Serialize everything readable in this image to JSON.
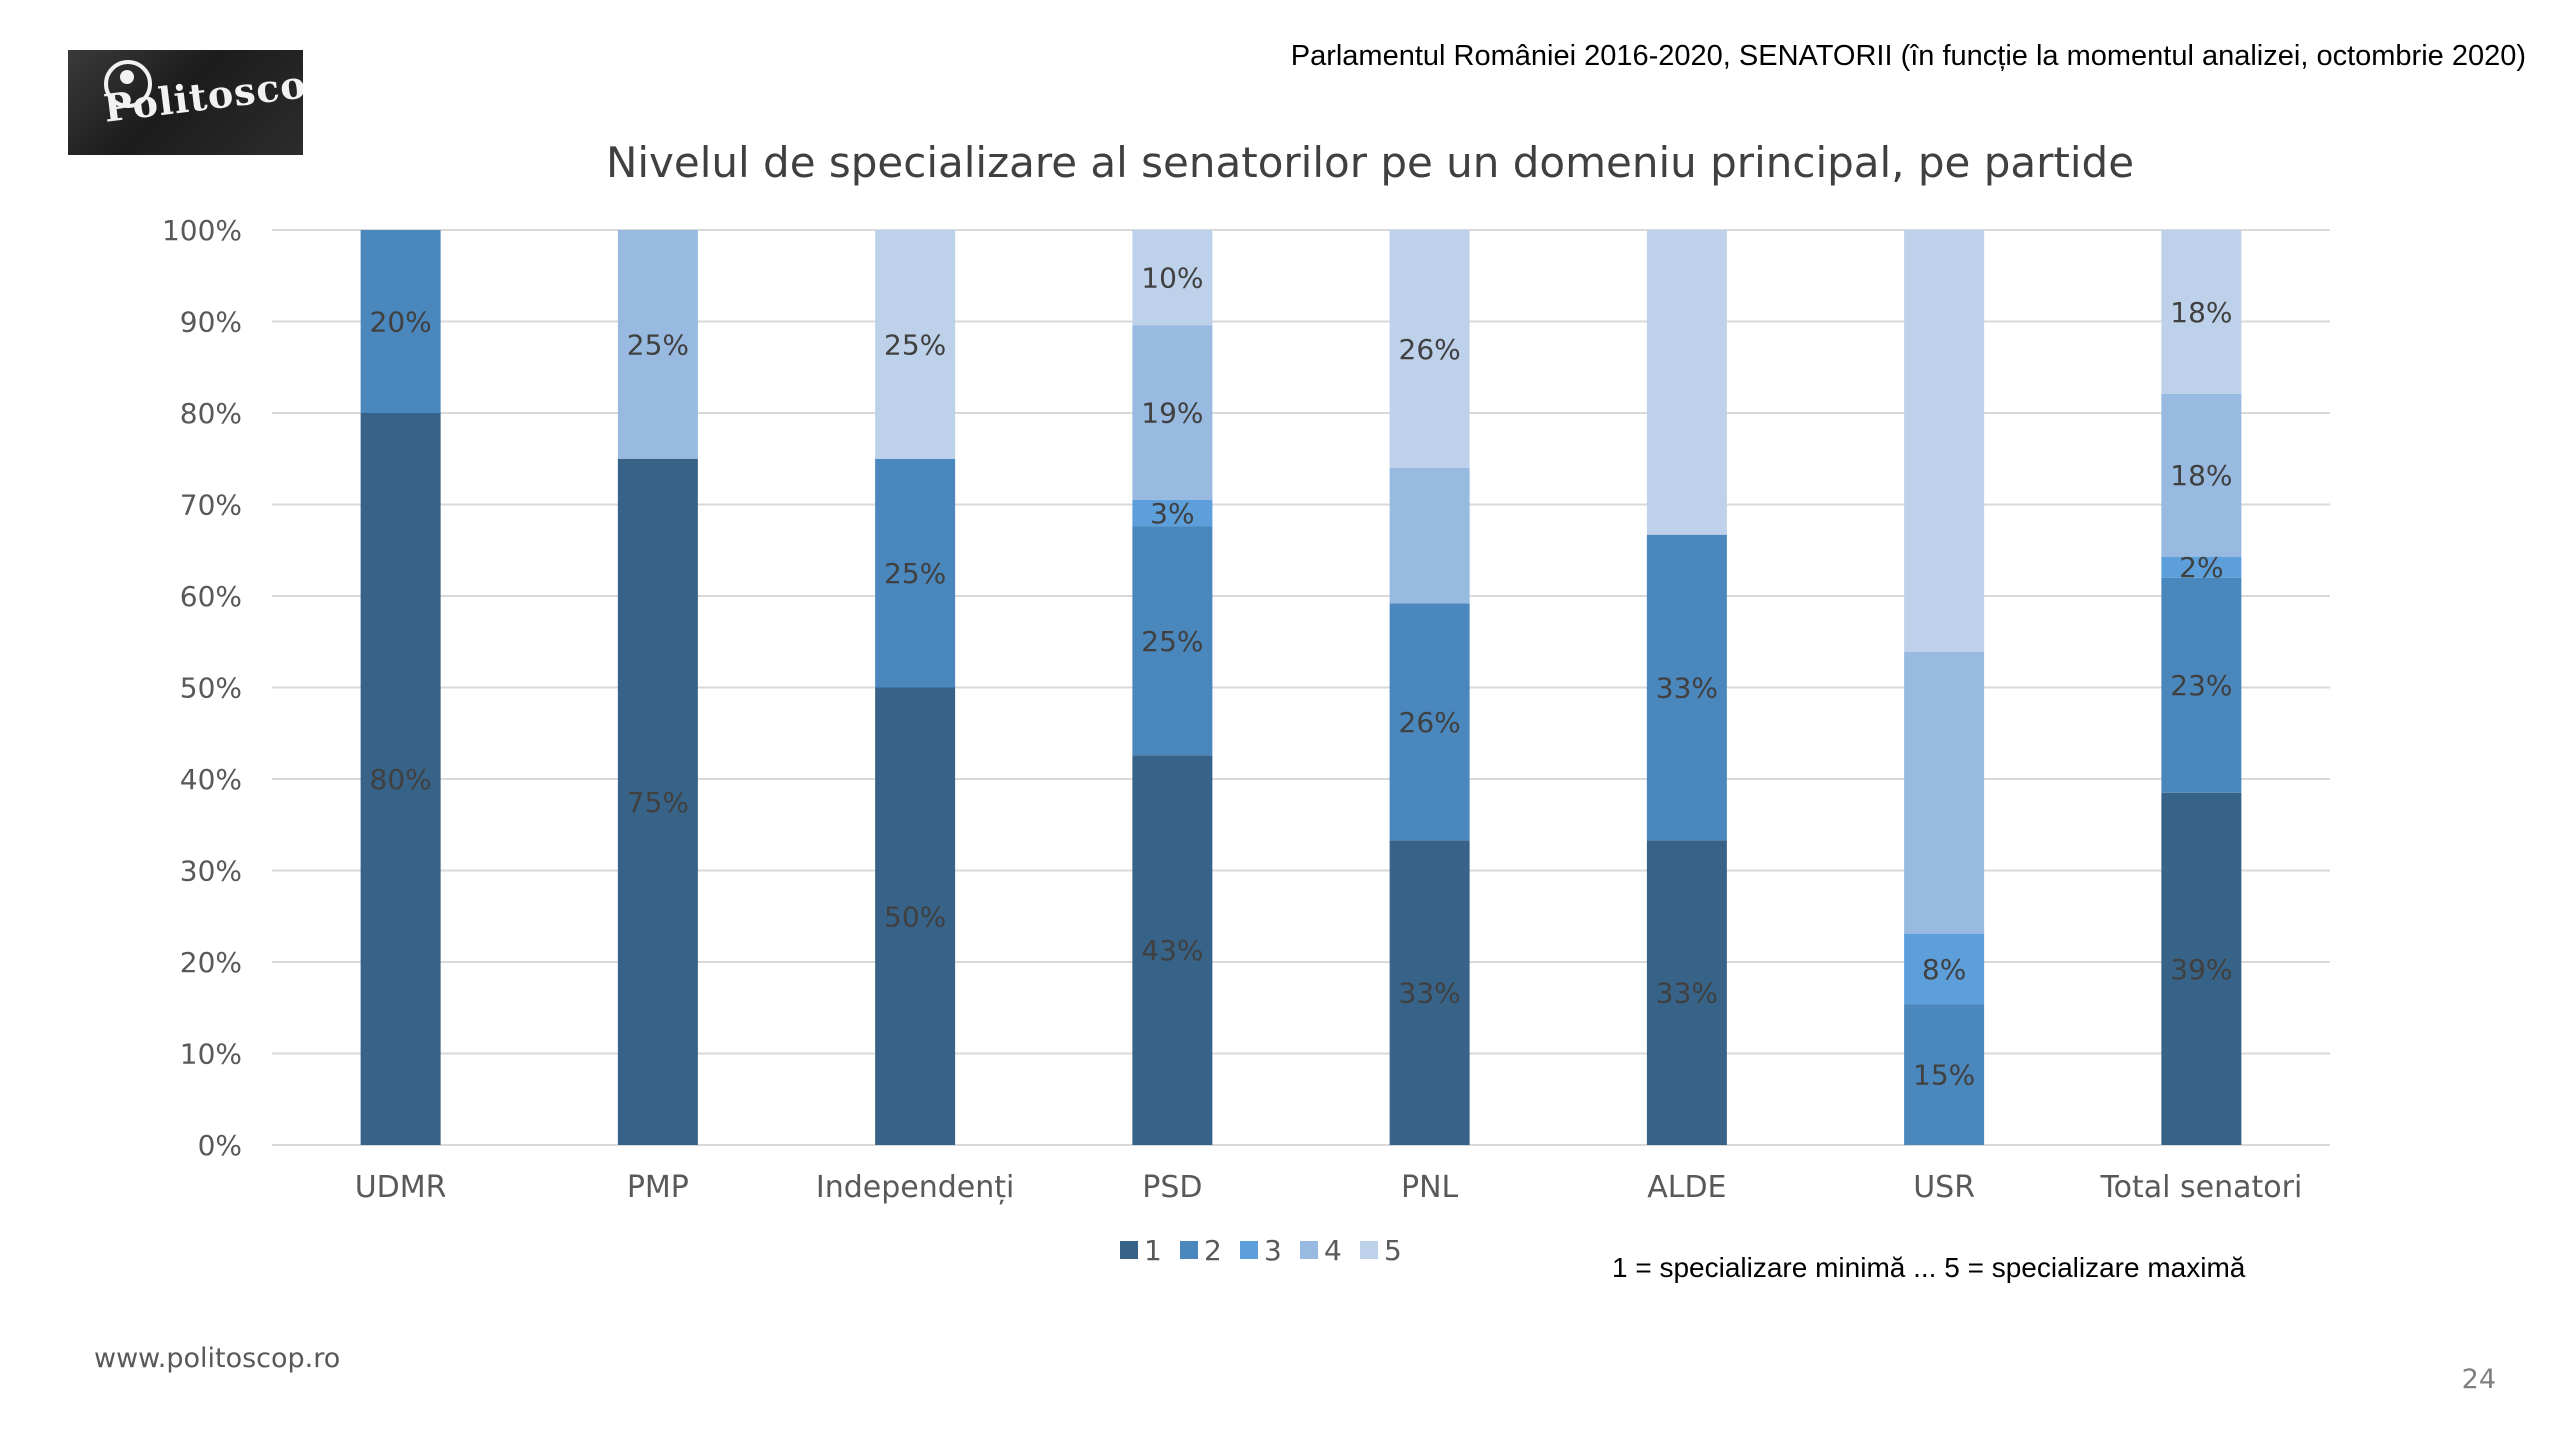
{
  "logo": {
    "text": "Politoscop",
    "icon": "camera-lens-icon"
  },
  "header": {
    "source_note": "Parlamentul României 2016-2020, SENATORII (în funcție la momentul analizei, octombrie 2020)"
  },
  "legend_note": "1 = specializare minimă ... 5 = specializare maximă",
  "footer": {
    "url": "www.politoscop.ro",
    "page_number": "24"
  },
  "colors": {
    "level_1": "#376389",
    "level_2": "#4a87bd",
    "level_3": "#5c9fdb",
    "level_4": "#98b9e0",
    "level_5": "#bdd1ea",
    "gridline": "#d9d9d9",
    "axis_text": "#595959"
  },
  "chart_data": {
    "type": "bar",
    "stacked": "percent",
    "title": "Nivelul de specializare al senatorilor pe un domeniu principal, pe partide",
    "xlabel": "",
    "ylabel": "",
    "ylim": [
      0,
      100
    ],
    "yticks": [
      "0%",
      "10%",
      "20%",
      "30%",
      "40%",
      "50%",
      "60%",
      "70%",
      "80%",
      "90%",
      "100%"
    ],
    "grid": true,
    "legend_position": "bottom",
    "categories": [
      "UDMR",
      "PMP",
      "Independenți",
      "PSD",
      "PNL",
      "ALDE",
      "USR",
      "Total senatori"
    ],
    "series": [
      {
        "name": "1",
        "values": [
          80,
          75,
          50,
          42.6,
          33.3,
          33.3,
          0,
          38.5
        ],
        "labels": [
          "80%",
          "75%",
          "50%",
          "43%",
          "33%",
          "33%",
          "",
          "39%"
        ]
      },
      {
        "name": "2",
        "values": [
          20,
          0,
          25,
          25,
          25.9,
          33.4,
          15.4,
          23.5
        ],
        "labels": [
          "20%",
          "",
          "25%",
          "25%",
          "26%",
          "33%",
          "15%",
          "23%"
        ]
      },
      {
        "name": "3",
        "values": [
          0,
          0,
          0,
          2.9,
          0,
          0,
          7.7,
          2.3
        ],
        "labels": [
          "",
          "",
          "",
          "3%",
          "",
          "",
          "8%",
          "2%"
        ]
      },
      {
        "name": "4",
        "values": [
          0,
          25,
          0,
          19.1,
          14.8,
          0,
          30.8,
          17.8
        ],
        "labels": [
          "",
          "25%",
          "",
          "19%",
          "",
          "",
          "",
          "18%"
        ]
      },
      {
        "name": "5",
        "values": [
          0,
          0,
          25,
          10.4,
          26,
          33.3,
          46.1,
          17.9
        ],
        "labels": [
          "",
          "",
          "25%",
          "10%",
          "26%",
          "",
          "",
          "18%"
        ]
      }
    ]
  }
}
